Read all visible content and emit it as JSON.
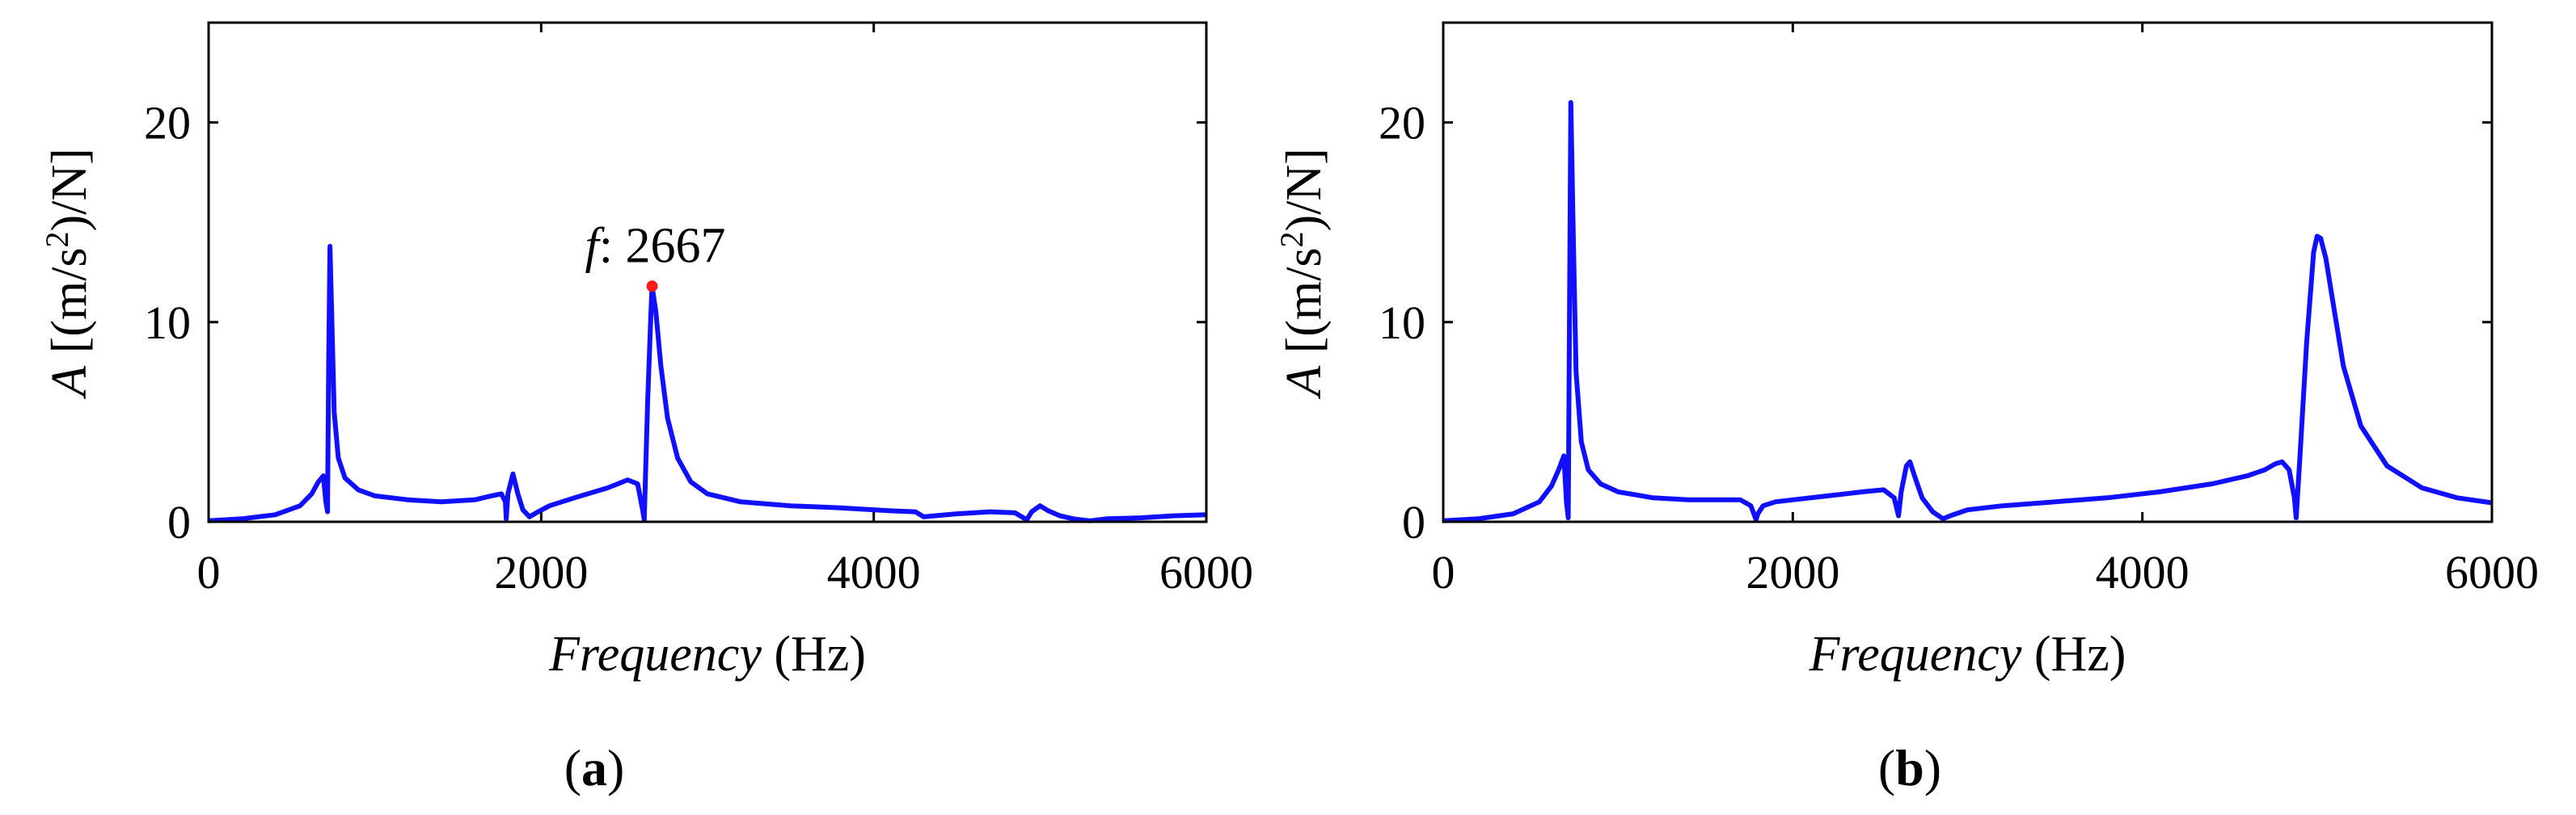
{
  "colors": {
    "series": "#1010ff",
    "marker": "#ff1a1a",
    "axis": "#000000"
  },
  "chart_data": [
    {
      "type": "line",
      "panel_label": "(a)",
      "xlabel": {
        "italic": "Frequency",
        "plain": " (Hz)"
      },
      "ylabel": {
        "italic": "A",
        "unit_open": " [(m/s",
        "sup": "2",
        "unit_close": ")/N]"
      },
      "xlim": [
        0,
        6000
      ],
      "ylim": [
        0,
        25
      ],
      "xticks": [
        0,
        2000,
        4000,
        6000
      ],
      "yticks": [
        0,
        10,
        20
      ],
      "grid": false,
      "annotation": {
        "italic": "f",
        "text": ": 2667",
        "x": 2667,
        "y": 11.8
      },
      "series": [
        {
          "x": [
            0,
            200,
            400,
            550,
            620,
            660,
            690,
            705,
            715,
            722,
            730,
            740,
            755,
            780,
            820,
            900,
            1000,
            1200,
            1400,
            1600,
            1700,
            1760,
            1785,
            1790,
            1800,
            1830,
            1860,
            1890,
            1930,
            1970,
            2050,
            2200,
            2400,
            2520,
            2580,
            2610,
            2620,
            2640,
            2660,
            2667,
            2690,
            2720,
            2760,
            2820,
            2900,
            3000,
            3200,
            3500,
            3800,
            4100,
            4250,
            4300,
            4500,
            4700,
            4850,
            4920,
            4950,
            5000,
            5050,
            5120,
            5200,
            5300,
            5400,
            5600,
            5800,
            6000
          ],
          "y": [
            0.05,
            0.15,
            0.35,
            0.8,
            1.4,
            2.0,
            2.3,
            1.0,
            0.5,
            8.0,
            13.8,
            10.5,
            5.5,
            3.2,
            2.2,
            1.6,
            1.3,
            1.1,
            1.0,
            1.1,
            1.3,
            1.4,
            1.0,
            0.15,
            1.4,
            2.4,
            1.4,
            0.6,
            0.25,
            0.45,
            0.8,
            1.2,
            1.7,
            2.1,
            1.9,
            0.6,
            0.1,
            6.0,
            10.5,
            11.8,
            10.5,
            7.8,
            5.2,
            3.2,
            2.0,
            1.4,
            1.0,
            0.8,
            0.7,
            0.55,
            0.5,
            0.25,
            0.4,
            0.5,
            0.45,
            0.1,
            0.5,
            0.8,
            0.55,
            0.3,
            0.15,
            0.05,
            0.15,
            0.2,
            0.3,
            0.35
          ]
        }
      ]
    },
    {
      "type": "line",
      "panel_label": "(b)",
      "xlabel": {
        "italic": "Frequency",
        "plain": " (Hz)"
      },
      "ylabel": {
        "italic": "A",
        "unit_open": " [(m/s",
        "sup": "2",
        "unit_close": ")/N]"
      },
      "xlim": [
        0,
        6000
      ],
      "ylim": [
        0,
        25
      ],
      "xticks": [
        0,
        2000,
        4000,
        6000
      ],
      "yticks": [
        0,
        10,
        20
      ],
      "grid": false,
      "series": [
        {
          "x": [
            0,
            200,
            400,
            550,
            620,
            660,
            690,
            705,
            715,
            722,
            730,
            745,
            760,
            790,
            830,
            900,
            1000,
            1200,
            1400,
            1600,
            1700,
            1760,
            1790,
            1800,
            1830,
            1900,
            2000,
            2200,
            2400,
            2520,
            2580,
            2605,
            2620,
            2650,
            2670,
            2700,
            2740,
            2800,
            2860,
            2900,
            3000,
            3200,
            3500,
            3800,
            4100,
            4400,
            4600,
            4700,
            4760,
            4800,
            4840,
            4870,
            4880,
            4900,
            4940,
            4980,
            5000,
            5020,
            5050,
            5100,
            5150,
            5250,
            5400,
            5600,
            5800,
            6000
          ],
          "y": [
            0.05,
            0.15,
            0.4,
            1.0,
            1.8,
            2.6,
            3.3,
            1.0,
            0.2,
            10.0,
            21.0,
            14.0,
            7.5,
            4.0,
            2.6,
            1.9,
            1.5,
            1.2,
            1.1,
            1.1,
            1.1,
            0.8,
            0.1,
            0.4,
            0.8,
            1.0,
            1.1,
            1.3,
            1.5,
            1.6,
            1.2,
            0.3,
            1.5,
            2.8,
            3.0,
            2.2,
            1.2,
            0.5,
            0.15,
            0.3,
            0.6,
            0.8,
            1.0,
            1.2,
            1.5,
            1.9,
            2.3,
            2.6,
            2.9,
            3.0,
            2.6,
            1.2,
            0.2,
            3.0,
            9.0,
            13.5,
            14.3,
            14.2,
            13.2,
            10.5,
            7.8,
            4.8,
            2.8,
            1.7,
            1.2,
            0.95
          ]
        }
      ]
    }
  ]
}
